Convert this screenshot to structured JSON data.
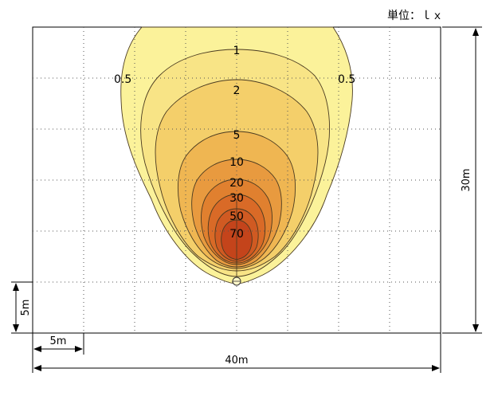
{
  "unit_label": "単位：ｌｘ",
  "dimensions": {
    "width_label": "40m",
    "height_label": "30m",
    "grid_x_label": "5m",
    "grid_y_label": "5m"
  },
  "contours": [
    {
      "label": "0.5",
      "color": "#fbf29a"
    },
    {
      "label": "1",
      "color": "#f8e486"
    },
    {
      "label": "2",
      "color": "#f4cf6a"
    },
    {
      "label": "5",
      "color": "#efb652"
    },
    {
      "label": "10",
      "color": "#e89a3f"
    },
    {
      "label": "20",
      "color": "#e0802f"
    },
    {
      "label": "30",
      "color": "#d96a27"
    },
    {
      "label": "50",
      "color": "#d05a22"
    },
    {
      "label": "70",
      "color": "#c4441b"
    }
  ]
}
